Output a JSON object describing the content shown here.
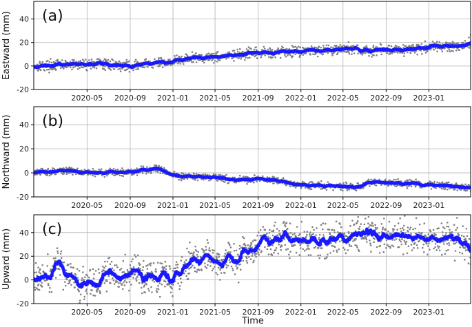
{
  "chart_data": [
    {
      "type": "scatter",
      "panel_label": "(a)",
      "xlabel": "",
      "ylabel": "Eastward (mm)",
      "xlim": [
        "2019-12-01",
        "2023-04-30"
      ],
      "ylim": [
        -20,
        55
      ],
      "yticks": [
        -20,
        0,
        20,
        40
      ],
      "xticks": [
        "2020-05",
        "2020-09",
        "2021-01",
        "2021-05",
        "2021-09",
        "2022-01",
        "2022-05",
        "2022-09",
        "2023-01"
      ],
      "grid": true,
      "colors": {
        "points": "#808080",
        "smooth": "#1a1aff"
      },
      "noise_mm": 2.2,
      "trend": [
        {
          "date": "2019-12-01",
          "value": 0
        },
        {
          "date": "2020-03-01",
          "value": 1
        },
        {
          "date": "2020-06-01",
          "value": 2
        },
        {
          "date": "2020-09-01",
          "value": 0
        },
        {
          "date": "2020-11-01",
          "value": 2
        },
        {
          "date": "2021-01-01",
          "value": 4
        },
        {
          "date": "2021-03-01",
          "value": 7
        },
        {
          "date": "2021-05-01",
          "value": 8
        },
        {
          "date": "2021-07-01",
          "value": 9
        },
        {
          "date": "2021-09-01",
          "value": 11
        },
        {
          "date": "2022-01-01",
          "value": 13
        },
        {
          "date": "2022-04-01",
          "value": 14
        },
        {
          "date": "2022-06-01",
          "value": 15
        },
        {
          "date": "2022-07-15",
          "value": 12
        },
        {
          "date": "2022-08-15",
          "value": 14
        },
        {
          "date": "2022-11-01",
          "value": 14
        },
        {
          "date": "2023-01-01",
          "value": 16
        },
        {
          "date": "2023-03-01",
          "value": 17
        },
        {
          "date": "2023-04-20",
          "value": 18
        },
        {
          "date": "2023-04-30",
          "value": 21
        }
      ]
    },
    {
      "type": "scatter",
      "panel_label": "(b)",
      "xlabel": "",
      "ylabel": "Northward (mm)",
      "xlim": [
        "2019-12-01",
        "2023-04-30"
      ],
      "ylim": [
        -20,
        55
      ],
      "yticks": [
        -20,
        0,
        20,
        40
      ],
      "xticks": [
        "2020-05",
        "2020-09",
        "2021-01",
        "2021-05",
        "2021-09",
        "2022-01",
        "2022-05",
        "2022-09",
        "2023-01"
      ],
      "grid": true,
      "colors": {
        "points": "#808080",
        "smooth": "#1a1aff"
      },
      "noise_mm": 1.5,
      "trend": [
        {
          "date": "2019-12-01",
          "value": 0
        },
        {
          "date": "2020-03-01",
          "value": 2
        },
        {
          "date": "2020-06-01",
          "value": 0
        },
        {
          "date": "2020-09-01",
          "value": 1
        },
        {
          "date": "2020-11-15",
          "value": 4
        },
        {
          "date": "2021-01-01",
          "value": -2
        },
        {
          "date": "2021-03-01",
          "value": -3
        },
        {
          "date": "2021-05-01",
          "value": -4
        },
        {
          "date": "2021-07-01",
          "value": -6
        },
        {
          "date": "2021-09-01",
          "value": -5
        },
        {
          "date": "2021-11-01",
          "value": -7
        },
        {
          "date": "2022-01-01",
          "value": -10
        },
        {
          "date": "2022-04-01",
          "value": -11
        },
        {
          "date": "2022-06-15",
          "value": -12
        },
        {
          "date": "2022-07-15",
          "value": -8
        },
        {
          "date": "2022-10-01",
          "value": -8
        },
        {
          "date": "2023-01-01",
          "value": -10
        },
        {
          "date": "2023-03-01",
          "value": -11
        },
        {
          "date": "2023-04-30",
          "value": -13
        }
      ]
    },
    {
      "type": "scatter",
      "panel_label": "(c)",
      "xlabel": "Time",
      "ylabel": "Upward (mm)",
      "xlim": [
        "2019-12-01",
        "2023-04-30"
      ],
      "ylim": [
        -20,
        55
      ],
      "yticks": [
        -20,
        0,
        20,
        40
      ],
      "xticks": [
        "2020-05",
        "2020-09",
        "2021-01",
        "2021-05",
        "2021-09",
        "2022-01",
        "2022-05",
        "2022-09",
        "2023-01"
      ],
      "grid": true,
      "colors": {
        "points": "#808080",
        "smooth": "#1a1aff"
      },
      "noise_mm": 7,
      "trend": [
        {
          "date": "2019-12-01",
          "value": 0
        },
        {
          "date": "2020-01-15",
          "value": 2
        },
        {
          "date": "2020-02-01",
          "value": 12
        },
        {
          "date": "2020-02-20",
          "value": 12
        },
        {
          "date": "2020-03-15",
          "value": 2
        },
        {
          "date": "2020-04-15",
          "value": -3
        },
        {
          "date": "2020-05-10",
          "value": 1
        },
        {
          "date": "2020-06-01",
          "value": -3
        },
        {
          "date": "2020-07-01",
          "value": 7
        },
        {
          "date": "2020-08-01",
          "value": 0
        },
        {
          "date": "2020-09-15",
          "value": 7
        },
        {
          "date": "2020-10-15",
          "value": 3
        },
        {
          "date": "2020-12-01",
          "value": 3
        },
        {
          "date": "2021-01-15",
          "value": 6
        },
        {
          "date": "2021-02-15",
          "value": 17
        },
        {
          "date": "2021-03-15",
          "value": 15
        },
        {
          "date": "2021-04-15",
          "value": 20
        },
        {
          "date": "2021-05-15",
          "value": 12
        },
        {
          "date": "2021-06-15",
          "value": 20
        },
        {
          "date": "2021-07-10",
          "value": 12
        },
        {
          "date": "2021-07-25",
          "value": 26
        },
        {
          "date": "2021-08-15",
          "value": 25
        },
        {
          "date": "2021-09-01",
          "value": 32
        },
        {
          "date": "2021-10-01",
          "value": 32
        },
        {
          "date": "2021-11-01",
          "value": 37
        },
        {
          "date": "2022-01-01",
          "value": 33
        },
        {
          "date": "2022-03-01",
          "value": 31
        },
        {
          "date": "2022-05-01",
          "value": 36
        },
        {
          "date": "2022-07-01",
          "value": 40
        },
        {
          "date": "2022-09-01",
          "value": 36
        },
        {
          "date": "2022-11-01",
          "value": 38
        },
        {
          "date": "2023-01-01",
          "value": 33
        },
        {
          "date": "2023-03-01",
          "value": 35
        },
        {
          "date": "2023-04-15",
          "value": 33
        },
        {
          "date": "2023-04-30",
          "value": 23
        }
      ]
    }
  ]
}
